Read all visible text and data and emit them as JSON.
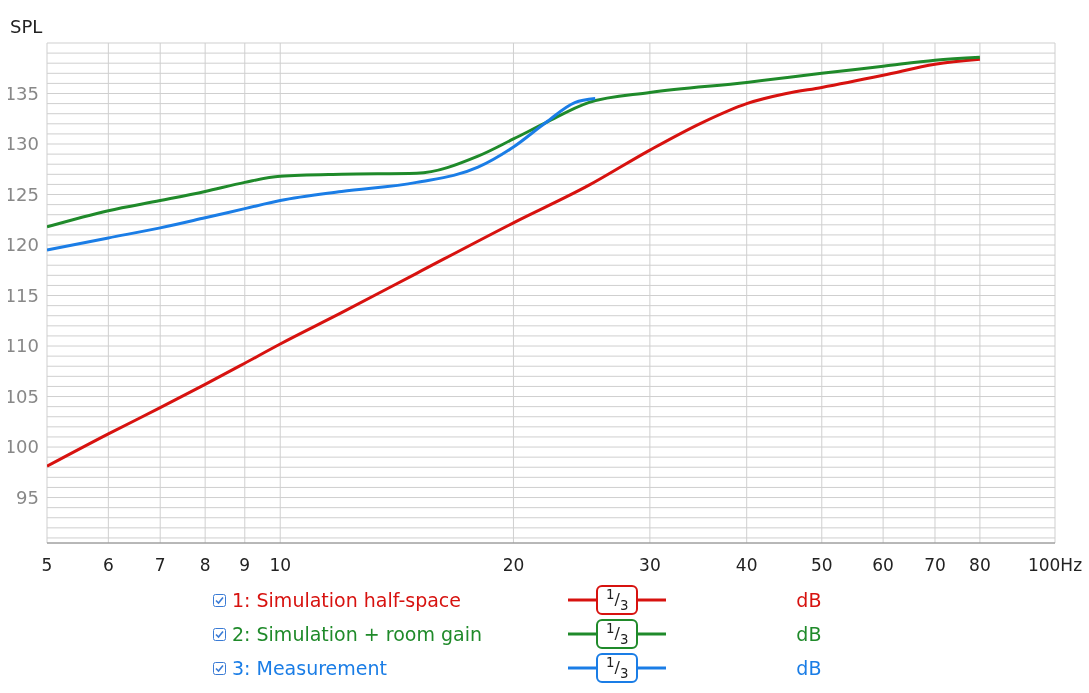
{
  "chart_data": {
    "type": "line",
    "ylabel": "SPL",
    "xlim": [
      5,
      100
    ],
    "xticks": [
      5,
      6,
      7,
      8,
      9,
      10,
      20,
      30,
      40,
      50,
      60,
      70,
      80,
      {
        "value": 100,
        "label": "100Hz"
      }
    ],
    "ylim": [
      90.5,
      140
    ],
    "yticks": [
      {
        "value": 91,
        "label": null
      },
      {
        "value": 92,
        "label": null
      },
      {
        "value": 93,
        "label": null
      },
      {
        "value": 94,
        "label": null
      },
      95,
      {
        "value": 96,
        "label": null
      },
      {
        "value": 97,
        "label": null
      },
      {
        "value": 98,
        "label": null
      },
      {
        "value": 99,
        "label": null
      },
      100,
      {
        "value": 101,
        "label": null
      },
      {
        "value": 102,
        "label": null
      },
      {
        "value": 103,
        "label": null
      },
      {
        "value": 104,
        "label": null
      },
      105,
      {
        "value": 106,
        "label": null
      },
      {
        "value": 107,
        "label": null
      },
      {
        "value": 108,
        "label": null
      },
      {
        "value": 109,
        "label": null
      },
      110,
      {
        "value": 111,
        "label": null
      },
      {
        "value": 112,
        "label": null
      },
      {
        "value": 113,
        "label": null
      },
      {
        "value": 114,
        "label": null
      },
      115,
      {
        "value": 116,
        "label": null
      },
      {
        "value": 117,
        "label": null
      },
      {
        "value": 118,
        "label": null
      },
      {
        "value": 119,
        "label": null
      },
      120,
      {
        "value": 121,
        "label": null
      },
      {
        "value": 122,
        "label": null
      },
      {
        "value": 123,
        "label": null
      },
      {
        "value": 124,
        "label": null
      },
      125,
      {
        "value": 126,
        "label": null
      },
      {
        "value": 127,
        "label": null
      },
      {
        "value": 128,
        "label": null
      },
      {
        "value": 129,
        "label": null
      },
      130,
      {
        "value": 131,
        "label": null
      },
      {
        "value": 132,
        "label": null
      },
      {
        "value": 133,
        "label": null
      },
      {
        "value": 134,
        "label": null
      },
      135,
      {
        "value": 136,
        "label": null
      },
      {
        "value": 137,
        "label": null
      },
      {
        "value": 138,
        "label": null
      },
      {
        "value": 139,
        "label": null
      }
    ],
    "log": "x",
    "grid": true,
    "legend": "bottom",
    "marker": "none",
    "line_style": "solid",
    "series": [
      {
        "name": "1: Simulation half-space",
        "color": "#d7120f",
        "x": [
          5,
          6,
          7,
          8,
          9,
          10,
          12,
          15,
          20,
          25,
          30,
          35,
          40,
          45,
          50,
          60,
          70,
          80
        ],
        "values": [
          98.1,
          101.3,
          103.9,
          106.2,
          108.3,
          110.2,
          113.3,
          117.2,
          122.2,
          125.9,
          129.4,
          132.1,
          134,
          135,
          135.6,
          136.8,
          137.9,
          138.4
        ]
      },
      {
        "name": "2: Simulation + room gain",
        "color": "#1f8a2a",
        "x": [
          5,
          6,
          7,
          8,
          9,
          10,
          12,
          15,
          18,
          20,
          22,
          25,
          30,
          40,
          50,
          60,
          70,
          80
        ],
        "values": [
          121.8,
          123.4,
          124.4,
          125.3,
          126.2,
          126.8,
          127,
          127.1,
          128.8,
          130.5,
          132.1,
          134.1,
          135.1,
          136.1,
          137,
          137.7,
          138.3,
          138.6
        ]
      },
      {
        "name": "3: Measurement",
        "color": "#1a7de6",
        "x": [
          5,
          6,
          7,
          8,
          9,
          10,
          12,
          15,
          18,
          20,
          22,
          24,
          25.5
        ],
        "values": [
          119.5,
          120.7,
          121.7,
          122.7,
          123.6,
          124.4,
          125.3,
          126.2,
          127.7,
          129.7,
          132.1,
          134.1,
          134.5
        ]
      }
    ],
    "annotations": [
      "$^{1}$/$_{3}$",
      "dB",
      "$^{1}$/$_{3}$",
      "dB",
      "$^{1}$/$_{3}$",
      "dB"
    ]
  }
}
